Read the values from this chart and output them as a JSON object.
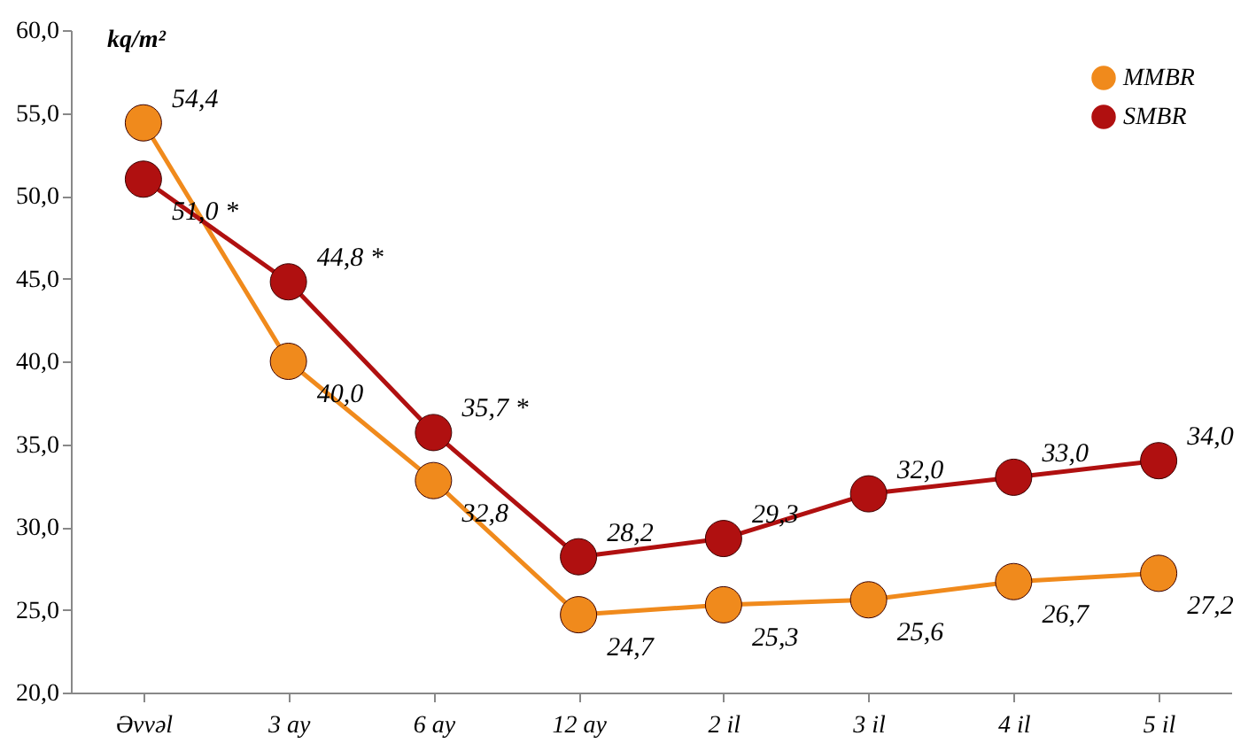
{
  "chart_data": {
    "type": "line",
    "ylabel": "kq/m²",
    "categories": [
      "Əvvəl",
      "3 ay",
      "6 ay",
      "12 ay",
      "2 il",
      "3 il",
      "4 il",
      "5 il"
    ],
    "series": [
      {
        "name": "MMBR",
        "color": "#f08a1c",
        "values": [
          54.4,
          40.0,
          32.8,
          24.7,
          25.3,
          25.6,
          26.7,
          27.2
        ],
        "value_labels": [
          "54,4",
          "40,0",
          "32,8",
          "24,7",
          "25,3",
          "25,6",
          "26,7",
          "27,2"
        ]
      },
      {
        "name": "SMBR",
        "color": "#b01010",
        "values": [
          51.0,
          44.8,
          35.7,
          28.2,
          29.3,
          32.0,
          33.0,
          34.0
        ],
        "value_labels": [
          "51,0 *",
          "44,8 *",
          "35,7 *",
          "28,2",
          "29,3",
          "32,0",
          "33,0",
          "34,0"
        ]
      }
    ],
    "ylim": [
      20,
      60
    ],
    "yticks": [
      {
        "value": 20,
        "label": "20,0"
      },
      {
        "value": 25,
        "label": "25,0"
      },
      {
        "value": 30,
        "label": "30,0"
      },
      {
        "value": 35,
        "label": "35,0"
      },
      {
        "value": 40,
        "label": "40,0"
      },
      {
        "value": 45,
        "label": "45,0"
      },
      {
        "value": 50,
        "label": "50,0"
      },
      {
        "value": 55,
        "label": "55,0"
      },
      {
        "value": 60,
        "label": "60,0"
      }
    ],
    "grid": false,
    "legend": "top right",
    "marker": "circle",
    "line_style": "solid"
  }
}
